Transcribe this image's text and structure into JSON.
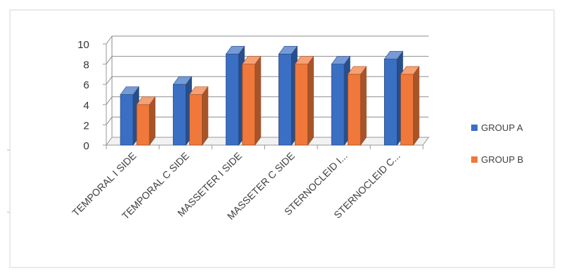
{
  "chart_data": {
    "type": "bar",
    "style": "3d-clustered-column",
    "categories": [
      "TEMPORAL I SIDE",
      "TEMPORAL C SIDE",
      "MASSETER I SIDE",
      "MASSETER C SIDE",
      "STERNOCLEID  I...",
      "STERNOCLEID C..."
    ],
    "series": [
      {
        "name": "GROUP A",
        "color": "#3a6fc4",
        "values": [
          5,
          6,
          9,
          9,
          8,
          8.5
        ]
      },
      {
        "name": "GROUP B",
        "color": "#f0783a",
        "values": [
          4,
          5,
          8,
          8,
          7,
          7
        ]
      }
    ],
    "yticks": [
      "0",
      "2",
      "4",
      "6",
      "8",
      "10"
    ],
    "ylim": [
      0,
      10
    ],
    "grid": true,
    "legend_position": "right"
  }
}
